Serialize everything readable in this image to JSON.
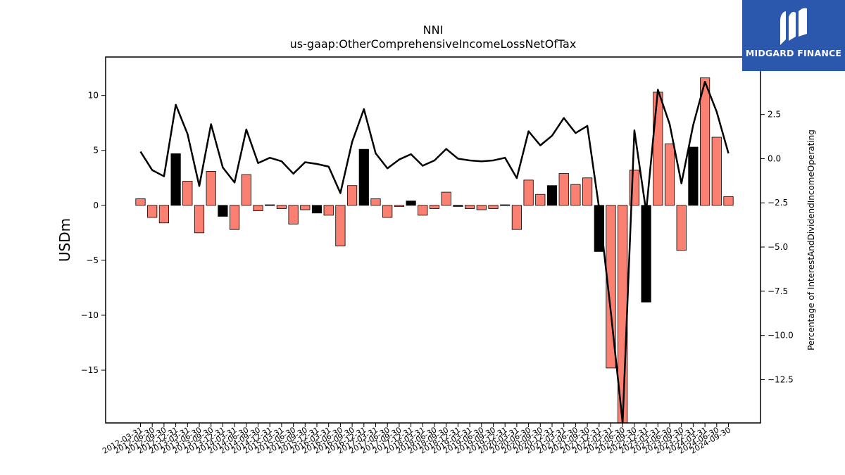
{
  "brand": {
    "name": "MIDGARD FINANCE",
    "bg_color": "#2b57ad",
    "icon": "midgard-logo-icon"
  },
  "chart_data": {
    "type": "bar",
    "title": "NNI",
    "subtitle": "us-gaap:OtherComprehensiveIncomeLossNetOfTax",
    "ylabel": "USDm",
    "y2label": "Percentage of InterestAndDividendIncomeOperating",
    "ylim": [
      -19.8,
      13.5
    ],
    "y2lim": [
      -14.95,
      5.75
    ],
    "yticks": [
      10,
      5,
      0,
      -5,
      -10,
      -15
    ],
    "y2ticks": [
      2.5,
      0.0,
      -2.5,
      -5.0,
      -7.5,
      -10.0,
      -12.5
    ],
    "grid": false,
    "legend": "none",
    "colors": {
      "positive_surprise": "#fa8072",
      "highlight": "#000000",
      "line": "#000000"
    },
    "categories": [
      "2012-03-31",
      "2012-06-30",
      "2012-09-30",
      "2012-12-31",
      "2013-03-31",
      "2013-06-30",
      "2013-09-30",
      "2013-12-31",
      "2014-03-31",
      "2014-06-30",
      "2014-09-30",
      "2014-12-31",
      "2015-03-31",
      "2015-06-30",
      "2015-09-30",
      "2015-12-31",
      "2016-03-31",
      "2016-06-30",
      "2016-09-30",
      "2016-12-31",
      "2017-03-31",
      "2017-06-30",
      "2017-09-30",
      "2017-12-31",
      "2018-03-31",
      "2018-06-30",
      "2018-09-30",
      "2018-12-31",
      "2019-03-31",
      "2019-06-30",
      "2019-09-30",
      "2019-12-31",
      "2020-03-31",
      "2020-06-30",
      "2020-09-30",
      "2020-12-31",
      "2021-03-31",
      "2021-06-30",
      "2021-09-30",
      "2021-12-31",
      "2022-03-31",
      "2022-06-30",
      "2022-09-30",
      "2022-12-31",
      "2023-03-31",
      "2023-06-30",
      "2023-09-30",
      "2023-12-31",
      "2024-03-31",
      "2024-06-30",
      "2024-09-30"
    ],
    "series": [
      {
        "type": "bar",
        "values": [
          0.6,
          -1.1,
          -1.6,
          4.7,
          2.2,
          -2.5,
          3.1,
          -1.0,
          -2.2,
          2.8,
          -0.5,
          0.05,
          -0.3,
          -1.7,
          -0.4,
          -0.7,
          -0.9,
          -3.7,
          1.8,
          5.1,
          0.6,
          -1.1,
          -0.1,
          0.4,
          -0.9,
          -0.3,
          1.2,
          -0.1,
          -0.3,
          -0.4,
          -0.3,
          0.05,
          -2.2,
          2.3,
          1.0,
          1.8,
          2.9,
          1.9,
          2.5,
          -4.2,
          -14.8,
          -19.8,
          3.2,
          -8.8,
          10.3,
          5.6,
          -4.1,
          5.3,
          11.6,
          6.2,
          0.8
        ],
        "highlight": [
          false,
          false,
          false,
          true,
          false,
          false,
          false,
          true,
          false,
          false,
          false,
          true,
          false,
          false,
          false,
          true,
          false,
          false,
          false,
          true,
          false,
          false,
          false,
          true,
          false,
          false,
          false,
          true,
          false,
          false,
          false,
          true,
          false,
          false,
          false,
          true,
          false,
          false,
          false,
          true,
          false,
          false,
          false,
          true,
          false,
          false,
          false,
          true,
          false,
          false,
          false
        ]
      },
      {
        "type": "line",
        "axis": "right",
        "values": [
          0.4,
          -0.65,
          -1.0,
          3.05,
          1.4,
          -1.55,
          1.95,
          -0.5,
          -1.35,
          1.65,
          -0.25,
          0.05,
          -0.15,
          -0.85,
          -0.2,
          -0.3,
          -0.45,
          -1.95,
          0.95,
          2.8,
          0.3,
          -0.55,
          -0.05,
          0.25,
          -0.4,
          -0.1,
          0.55,
          0.0,
          -0.1,
          -0.15,
          -0.1,
          0.05,
          -1.1,
          1.55,
          0.75,
          1.3,
          2.3,
          1.45,
          1.85,
          -2.8,
          -8.7,
          -14.95,
          1.6,
          -3.0,
          3.9,
          1.95,
          -1.4,
          1.9,
          4.35,
          2.65,
          0.3
        ]
      }
    ]
  }
}
